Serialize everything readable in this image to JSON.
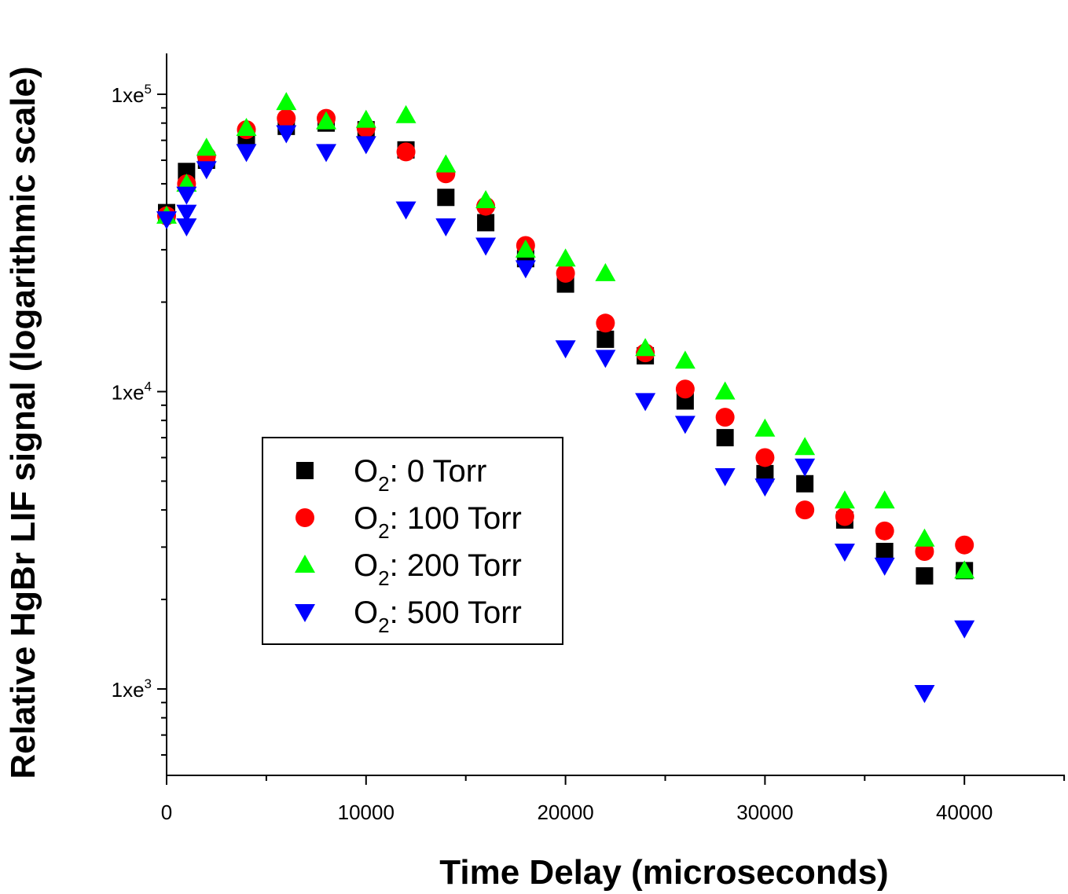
{
  "chart_data": {
    "type": "scatter",
    "xlabel": "Time Delay (microseconds)",
    "ylabel": "Relative HgBr LIF signal (logarithmic scale)",
    "xlim": [
      0,
      45000
    ],
    "ylim": [
      500,
      140000
    ],
    "y_scale": "log",
    "grid": false,
    "legend_position": "center-left",
    "x_ticks": [
      0,
      10000,
      20000,
      30000,
      40000
    ],
    "y_ticks": [
      {
        "value": 1000,
        "mantissa": "1xe",
        "exp": "3"
      },
      {
        "value": 10000,
        "mantissa": "1xe",
        "exp": "4"
      },
      {
        "value": 100000,
        "mantissa": "1xe",
        "exp": "5"
      }
    ],
    "series": [
      {
        "name": "O2: 0 Torr",
        "legend": {
          "species": "O",
          "sub": "2",
          "rest": ": 0 Torr"
        },
        "marker": "square",
        "color": "#000000",
        "points": [
          [
            0,
            40000
          ],
          [
            1000,
            55000
          ],
          [
            2000,
            60000
          ],
          [
            4000,
            72000
          ],
          [
            6000,
            78000
          ],
          [
            8000,
            80000
          ],
          [
            10000,
            76000
          ],
          [
            12000,
            65000
          ],
          [
            14000,
            45000
          ],
          [
            16000,
            37000
          ],
          [
            18000,
            28000
          ],
          [
            20000,
            23000
          ],
          [
            22000,
            15000
          ],
          [
            24000,
            13200
          ],
          [
            26000,
            9300
          ],
          [
            28000,
            7000
          ],
          [
            30000,
            5300
          ],
          [
            32000,
            4900
          ],
          [
            34000,
            3700
          ],
          [
            36000,
            2900
          ],
          [
            38000,
            2400
          ],
          [
            40000,
            2500
          ]
        ]
      },
      {
        "name": "O2: 100 Torr",
        "legend": {
          "species": "O",
          "sub": "2",
          "rest": ": 100 Torr"
        },
        "marker": "circle",
        "color": "#ff0000",
        "points": [
          [
            0,
            39000
          ],
          [
            1000,
            50000
          ],
          [
            2000,
            62000
          ],
          [
            4000,
            76000
          ],
          [
            6000,
            83000
          ],
          [
            8000,
            83000
          ],
          [
            10000,
            77000
          ],
          [
            12000,
            64000
          ],
          [
            14000,
            54000
          ],
          [
            16000,
            42000
          ],
          [
            18000,
            31000
          ],
          [
            20000,
            25000
          ],
          [
            22000,
            17000
          ],
          [
            24000,
            13500
          ],
          [
            26000,
            10200
          ],
          [
            28000,
            8200
          ],
          [
            30000,
            6000
          ],
          [
            32000,
            4000
          ],
          [
            34000,
            3800
          ],
          [
            36000,
            3400
          ],
          [
            38000,
            2900
          ],
          [
            40000,
            3050
          ]
        ]
      },
      {
        "name": "O2: 200 Torr",
        "legend": {
          "species": "O",
          "sub": "2",
          "rest": ": 200 Torr"
        },
        "marker": "triangle-up",
        "color": "#00ff00",
        "points": [
          [
            0,
            39000
          ],
          [
            1000,
            50000
          ],
          [
            2000,
            66000
          ],
          [
            4000,
            77000
          ],
          [
            6000,
            94000
          ],
          [
            8000,
            81000
          ],
          [
            10000,
            82000
          ],
          [
            12000,
            85000
          ],
          [
            14000,
            58000
          ],
          [
            16000,
            44000
          ],
          [
            18000,
            30000
          ],
          [
            20000,
            28000
          ],
          [
            22000,
            25000
          ],
          [
            24000,
            14000
          ],
          [
            26000,
            12700
          ],
          [
            28000,
            10000
          ],
          [
            30000,
            7500
          ],
          [
            32000,
            6500
          ],
          [
            34000,
            4300
          ],
          [
            36000,
            4300
          ],
          [
            38000,
            3200
          ],
          [
            40000,
            2500
          ]
        ]
      },
      {
        "name": "O2: 500 Torr",
        "legend": {
          "species": "O",
          "sub": "2",
          "rest": ": 500 Torr"
        },
        "marker": "triangle-down",
        "color": "#0000ff",
        "points": [
          [
            0,
            38000
          ],
          [
            1000,
            36000
          ],
          [
            1000,
            40000
          ],
          [
            1000,
            46000
          ],
          [
            2000,
            56000
          ],
          [
            4000,
            64000
          ],
          [
            6000,
            74000
          ],
          [
            8000,
            64000
          ],
          [
            10000,
            68000
          ],
          [
            12000,
            41000
          ],
          [
            14000,
            36000
          ],
          [
            16000,
            31000
          ],
          [
            18000,
            26000
          ],
          [
            20000,
            14000
          ],
          [
            22000,
            13000
          ],
          [
            24000,
            9300
          ],
          [
            26000,
            7800
          ],
          [
            28000,
            5200
          ],
          [
            30000,
            4800
          ],
          [
            32000,
            5600
          ],
          [
            34000,
            2900
          ],
          [
            36000,
            2600
          ],
          [
            38000,
            970
          ],
          [
            40000,
            1600
          ]
        ]
      }
    ]
  }
}
